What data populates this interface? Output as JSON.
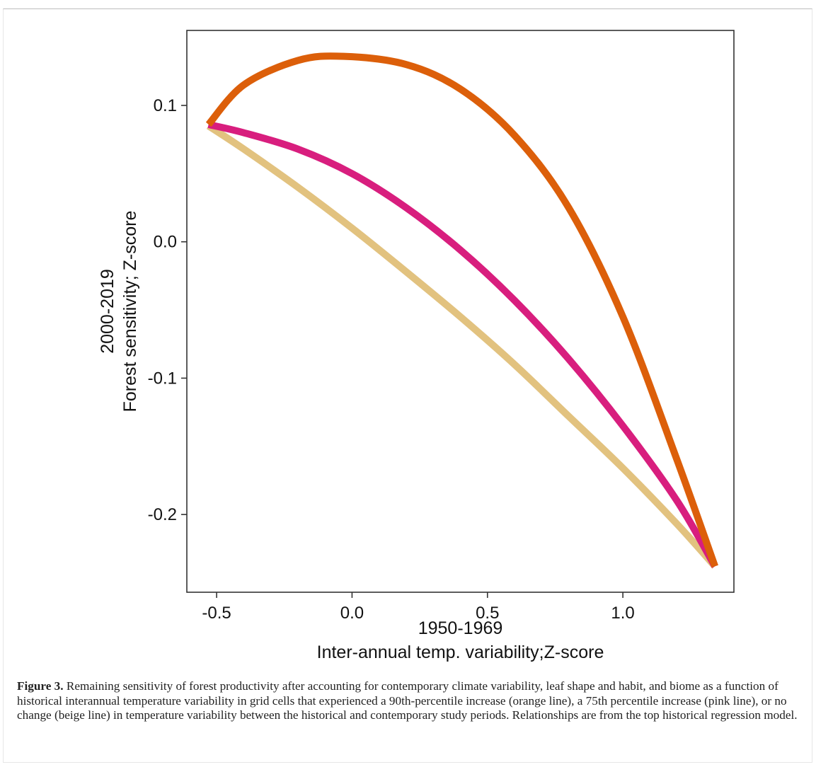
{
  "chart_data": {
    "type": "line",
    "title": "",
    "xlabel_lines": [
      "1950-1969",
      "Inter-annual temp. variability;Z-score"
    ],
    "ylabel_lines": [
      "2000-2019",
      "Forest sensitivity; Z-score"
    ],
    "xlim": [
      -0.61,
      1.41
    ],
    "ylim": [
      -0.257,
      0.155
    ],
    "x_ticks": [
      -0.5,
      0.0,
      0.5,
      1.0
    ],
    "x_tick_labels": [
      "-0.5",
      "0.0",
      "0.5",
      "1.0"
    ],
    "y_ticks": [
      0.1,
      0.0,
      -0.1,
      -0.2
    ],
    "y_tick_labels": [
      "0.1",
      "0.0",
      "-0.1",
      "-0.2"
    ],
    "grid": false,
    "series": [
      {
        "color": "#e2c27f",
        "x": [
          -0.53,
          -0.4,
          -0.2,
          0.0,
          0.2,
          0.4,
          0.6,
          0.8,
          1.0,
          1.2,
          1.34
        ],
        "y": [
          0.085,
          0.068,
          0.04,
          0.01,
          -0.022,
          -0.055,
          -0.09,
          -0.128,
          -0.166,
          -0.207,
          -0.238
        ]
      },
      {
        "color": "#d81e7e",
        "x": [
          -0.53,
          -0.4,
          -0.2,
          0.0,
          0.2,
          0.4,
          0.6,
          0.8,
          1.0,
          1.2,
          1.34
        ],
        "y": [
          0.086,
          0.08,
          0.068,
          0.05,
          0.025,
          -0.006,
          -0.043,
          -0.086,
          -0.135,
          -0.19,
          -0.238
        ]
      },
      {
        "color": "#dc5f0a",
        "x": [
          -0.53,
          -0.4,
          -0.2,
          -0.03,
          0.2,
          0.4,
          0.6,
          0.8,
          1.0,
          1.2,
          1.34
        ],
        "y": [
          0.086,
          0.115,
          0.133,
          0.136,
          0.13,
          0.112,
          0.078,
          0.025,
          -0.055,
          -0.16,
          -0.238
        ]
      }
    ]
  },
  "caption": {
    "label": "Figure 3.",
    "text": "Remaining sensitivity of forest productivity after accounting for contemporary climate variability, leaf shape and habit, and biome as a function of historical interannual temperature variability in grid cells that experienced a 90th-percentile increase (orange line), a 75th percentile increase (pink line), or no change (beige line) in temperature variability between the historical and contemporary study periods. Relationships are from the top historical regression model."
  }
}
